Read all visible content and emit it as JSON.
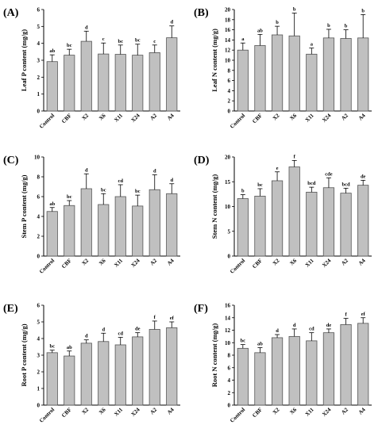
{
  "figure": {
    "bar_color": "#c0c0c0",
    "bar_edge_color": "#555555"
  },
  "chart_data": [
    {
      "type": "bar",
      "panel": "(A)",
      "ylabel": "Leaf P content (mg/g)",
      "categories": [
        "Control",
        "CBF",
        "X2",
        "X6",
        "X11",
        "X24",
        "A2",
        "A4"
      ],
      "values": [
        2.92,
        3.3,
        4.12,
        3.37,
        3.35,
        3.3,
        3.45,
        4.33
      ],
      "errors": [
        0.4,
        0.35,
        0.6,
        0.65,
        0.55,
        0.65,
        0.45,
        0.7
      ],
      "letters": [
        "ab",
        "bc",
        "d",
        "c",
        "bc",
        "bc",
        "c",
        "d"
      ],
      "ylim": [
        0,
        6
      ],
      "yticks": [
        0,
        1,
        2,
        3,
        4,
        5,
        6
      ]
    },
    {
      "type": "bar",
      "panel": "(B)",
      "ylabel": "Leaf N content (mg/g)",
      "categories": [
        "Control",
        "CBF",
        "X2",
        "X6",
        "X11",
        "X24",
        "A2",
        "A4"
      ],
      "values": [
        12.0,
        12.9,
        15.0,
        14.8,
        11.2,
        14.4,
        14.3,
        14.4
      ],
      "errors": [
        1.4,
        2.2,
        1.7,
        4.5,
        1.2,
        1.7,
        1.7,
        4.6
      ],
      "letters": [
        "a",
        "ab",
        "b",
        "b",
        "a",
        "b",
        "b",
        "b"
      ],
      "ylim": [
        0,
        20
      ],
      "yticks": [
        0,
        2,
        4,
        6,
        8,
        10,
        12,
        14,
        16,
        18,
        20
      ]
    },
    {
      "type": "bar",
      "panel": "(C)",
      "ylabel": "Stem P content (mg/g)",
      "categories": [
        "Control",
        "CBF",
        "X2",
        "X6",
        "X11",
        "X24",
        "A2",
        "A4"
      ],
      "values": [
        4.5,
        5.1,
        6.8,
        5.2,
        6.0,
        5.05,
        6.7,
        6.3
      ],
      "errors": [
        0.4,
        0.5,
        1.5,
        1.1,
        1.2,
        1.1,
        1.5,
        1.0
      ],
      "letters": [
        "ab",
        "bc",
        "d",
        "bc",
        "cd",
        "bc",
        "d",
        "d"
      ],
      "ylim": [
        0,
        10
      ],
      "yticks": [
        0,
        2,
        4,
        6,
        8,
        10
      ]
    },
    {
      "type": "bar",
      "panel": "(D)",
      "ylabel": "Stem N content (mg/g)",
      "categories": [
        "Control",
        "CBF",
        "X2",
        "X6",
        "X11",
        "X24",
        "A2",
        "A4"
      ],
      "values": [
        11.6,
        12.1,
        15.2,
        18.0,
        12.9,
        13.8,
        12.7,
        14.3
      ],
      "errors": [
        0.8,
        1.5,
        1.8,
        1.3,
        1.0,
        2.0,
        1.0,
        1.0
      ],
      "letters": [
        "b",
        "bc",
        "e",
        "f",
        "bcd",
        "cde",
        "bcd",
        "de"
      ],
      "ylim": [
        0,
        20
      ],
      "yticks": [
        0,
        5,
        10,
        15,
        20
      ]
    },
    {
      "type": "bar",
      "panel": "(E)",
      "ylabel": "Root P content (mg/g)",
      "categories": [
        "Control",
        "CBF",
        "X2",
        "X6",
        "X11",
        "X24",
        "A2",
        "A4"
      ],
      "values": [
        3.15,
        2.95,
        3.72,
        3.82,
        3.62,
        4.1,
        4.55,
        4.65
      ],
      "errors": [
        0.15,
        0.3,
        0.2,
        0.5,
        0.45,
        0.25,
        0.5,
        0.35
      ],
      "letters": [
        "bc",
        "ab",
        "d",
        "d",
        "cd",
        "de",
        "f",
        "ef"
      ],
      "ylim": [
        0,
        6
      ],
      "yticks": [
        0,
        1,
        2,
        3,
        4,
        5,
        6
      ]
    },
    {
      "type": "bar",
      "panel": "(F)",
      "ylabel": "Root N content (mg/g)",
      "categories": [
        "Control",
        "CBF",
        "X2",
        "X6",
        "X11",
        "X24",
        "A2",
        "A4"
      ],
      "values": [
        9.1,
        8.4,
        10.8,
        11.0,
        10.3,
        11.6,
        12.9,
        13.1
      ],
      "errors": [
        0.6,
        0.8,
        0.5,
        1.2,
        1.3,
        0.6,
        1.0,
        0.9
      ],
      "letters": [
        "bc",
        "ab",
        "d",
        "d",
        "cd",
        "de",
        "f",
        "ef"
      ],
      "ylim": [
        0,
        16
      ],
      "yticks": [
        0,
        2,
        4,
        6,
        8,
        10,
        12,
        14,
        16
      ]
    }
  ]
}
